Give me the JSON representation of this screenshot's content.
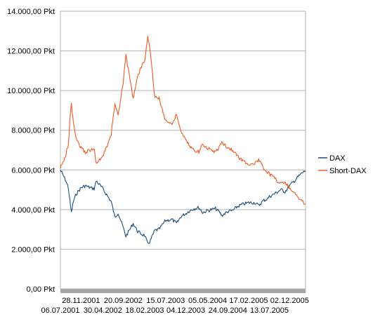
{
  "chart_data": {
    "type": "line",
    "title": "",
    "xlabel": "",
    "ylabel": "",
    "ylim": [
      0,
      14000
    ],
    "y_ticks": [
      {
        "value": 0,
        "label": "0,00 Pkt"
      },
      {
        "value": 2000,
        "label": "2.000,00 Pkt"
      },
      {
        "value": 4000,
        "label": "4.000,00 Pkt"
      },
      {
        "value": 6000,
        "label": "6.000,00 Pkt"
      },
      {
        "value": 8000,
        "label": "8.000,00 Pkt"
      },
      {
        "value": 10000,
        "label": "10.000,00 Pkt"
      },
      {
        "value": 12000,
        "label": "12.000,00 Pkt"
      },
      {
        "value": 14000,
        "label": "14.000,00 Pkt"
      }
    ],
    "x_ticks_top": [
      "28.11.2001",
      "20.09.2002",
      "15.07.2003",
      "05.05.2004",
      "17.02.2005",
      "02.12.2005"
    ],
    "x_ticks_bottom": [
      "06.07.2001",
      "30.04.2002",
      "18.02.2003",
      "04.12.2003",
      "24.09.2004",
      "13.07.2005"
    ],
    "grid": true,
    "legend_position": "right",
    "series": [
      {
        "name": "DAX",
        "color": "#1f4e79",
        "points": [
          [
            "06.07.2001",
            6000
          ],
          [
            "20.07.2001",
            5800
          ],
          [
            "10.08.2001",
            5500
          ],
          [
            "31.08.2001",
            5100
          ],
          [
            "11.09.2001",
            4400
          ],
          [
            "21.09.2001",
            3850
          ],
          [
            "05.10.2001",
            4400
          ],
          [
            "26.10.2001",
            4800
          ],
          [
            "28.11.2001",
            5100
          ],
          [
            "28.12.2001",
            5200
          ],
          [
            "31.01.2002",
            5100
          ],
          [
            "28.02.2002",
            5050
          ],
          [
            "15.03.2002",
            5450
          ],
          [
            "30.04.2002",
            5050
          ],
          [
            "31.05.2002",
            4700
          ],
          [
            "28.06.2002",
            4400
          ],
          [
            "24.07.2002",
            3600
          ],
          [
            "15.08.2002",
            3850
          ],
          [
            "20.09.2002",
            3100
          ],
          [
            "09.10.2002",
            2650
          ],
          [
            "29.11.2002",
            3300
          ],
          [
            "31.12.2002",
            2900
          ],
          [
            "31.01.2003",
            2750
          ],
          [
            "18.02.2003",
            2700
          ],
          [
            "12.03.2003",
            2250
          ],
          [
            "31.03.2003",
            2450
          ],
          [
            "30.04.2003",
            2950
          ],
          [
            "30.05.2003",
            3000
          ],
          [
            "15.07.2003",
            3450
          ],
          [
            "29.08.2003",
            3500
          ],
          [
            "30.09.2003",
            3300
          ],
          [
            "31.10.2003",
            3650
          ],
          [
            "04.12.2003",
            3800
          ],
          [
            "31.12.2003",
            3950
          ],
          [
            "30.01.2004",
            4050
          ],
          [
            "05.03.2004",
            4100
          ],
          [
            "31.03.2004",
            3850
          ],
          [
            "05.05.2004",
            3950
          ],
          [
            "30.06.2004",
            4050
          ],
          [
            "30.07.2004",
            3850
          ],
          [
            "13.08.2004",
            3700
          ],
          [
            "24.09.2004",
            3900
          ],
          [
            "29.10.2004",
            3950
          ],
          [
            "30.11.2004",
            4150
          ],
          [
            "31.12.2004",
            4250
          ],
          [
            "17.02.2005",
            4350
          ],
          [
            "31.03.2005",
            4350
          ],
          [
            "29.04.2005",
            4200
          ],
          [
            "31.05.2005",
            4450
          ],
          [
            "30.06.2005",
            4550
          ],
          [
            "13.07.2005",
            4650
          ],
          [
            "31.08.2005",
            4850
          ],
          [
            "30.09.2005",
            5000
          ],
          [
            "31.10.2005",
            4900
          ],
          [
            "02.12.2005",
            5200
          ],
          [
            "30.12.2005",
            5400
          ],
          [
            "31.01.2006",
            5650
          ],
          [
            "28.02.2006",
            5850
          ],
          [
            "24.03.2006",
            5950
          ]
        ]
      },
      {
        "name": "Short-DAX",
        "color": "#f05a24",
        "points": [
          [
            "06.07.2001",
            6100
          ],
          [
            "20.07.2001",
            6300
          ],
          [
            "10.08.2001",
            6700
          ],
          [
            "31.08.2001",
            7300
          ],
          [
            "11.09.2001",
            8600
          ],
          [
            "21.09.2001",
            9300
          ],
          [
            "05.10.2001",
            8400
          ],
          [
            "26.10.2001",
            7600
          ],
          [
            "28.11.2001",
            7100
          ],
          [
            "28.12.2001",
            6900
          ],
          [
            "31.01.2002",
            7000
          ],
          [
            "28.02.2002",
            7100
          ],
          [
            "15.03.2002",
            6300
          ],
          [
            "30.04.2002",
            6700
          ],
          [
            "31.05.2002",
            7200
          ],
          [
            "28.06.2002",
            7800
          ],
          [
            "24.07.2002",
            9400
          ],
          [
            "15.08.2002",
            8700
          ],
          [
            "20.09.2002",
            10400
          ],
          [
            "09.10.2002",
            11800
          ],
          [
            "29.11.2002",
            9600
          ],
          [
            "31.12.2002",
            10700
          ],
          [
            "31.01.2003",
            11300
          ],
          [
            "18.02.2003",
            11500
          ],
          [
            "12.03.2003",
            12800
          ],
          [
            "31.03.2003",
            11800
          ],
          [
            "30.04.2003",
            9700
          ],
          [
            "30.05.2003",
            9600
          ],
          [
            "15.07.2003",
            8500
          ],
          [
            "29.08.2003",
            8300
          ],
          [
            "30.09.2003",
            8800
          ],
          [
            "31.10.2003",
            7900
          ],
          [
            "04.12.2003",
            7500
          ],
          [
            "31.12.2003",
            7200
          ],
          [
            "30.01.2004",
            7000
          ],
          [
            "05.03.2004",
            6900
          ],
          [
            "31.03.2004",
            7300
          ],
          [
            "05.05.2004",
            7100
          ],
          [
            "30.06.2004",
            6900
          ],
          [
            "30.07.2004",
            7200
          ],
          [
            "13.08.2004",
            7400
          ],
          [
            "24.09.2004",
            7100
          ],
          [
            "29.10.2004",
            7000
          ],
          [
            "30.11.2004",
            6700
          ],
          [
            "31.12.2004",
            6500
          ],
          [
            "17.02.2005",
            6300
          ],
          [
            "31.03.2005",
            6300
          ],
          [
            "29.04.2005",
            6500
          ],
          [
            "31.05.2005",
            6100
          ],
          [
            "30.06.2005",
            5900
          ],
          [
            "13.07.2005",
            5800
          ],
          [
            "31.08.2005",
            5500
          ],
          [
            "30.09.2005",
            5300
          ],
          [
            "31.10.2005",
            5400
          ],
          [
            "02.12.2005",
            5100
          ],
          [
            "30.12.2005",
            4900
          ],
          [
            "31.01.2006",
            4600
          ],
          [
            "28.02.2006",
            4400
          ],
          [
            "24.03.2006",
            4300
          ]
        ]
      }
    ]
  }
}
